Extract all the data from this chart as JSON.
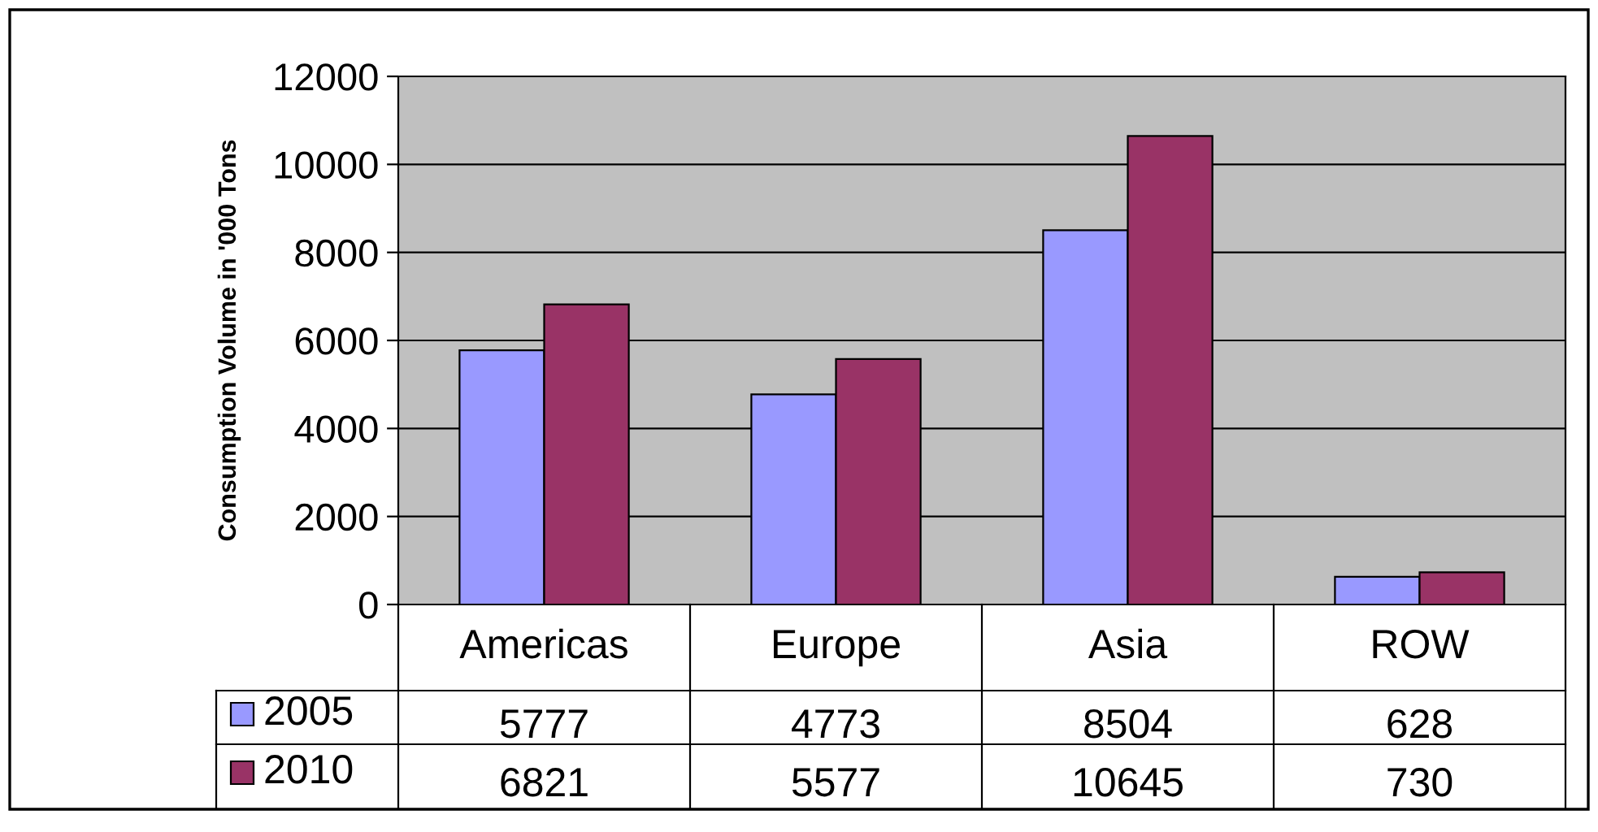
{
  "chart_data": {
    "type": "bar",
    "ylabel": "Consumption Volume in '000 Tons",
    "categories": [
      "Americas",
      "Europe",
      "Asia",
      "ROW"
    ],
    "series": [
      {
        "name": "2005",
        "color": "#9999ff",
        "values": [
          5777,
          4773,
          8504,
          628
        ]
      },
      {
        "name": "2010",
        "color": "#993366",
        "values": [
          6821,
          5577,
          10645,
          730
        ]
      }
    ],
    "ylim": [
      0,
      12000
    ],
    "yticks": [
      0,
      2000,
      4000,
      6000,
      8000,
      10000,
      12000
    ],
    "grid": "y",
    "legend": "bottom left",
    "data_labels": true
  }
}
